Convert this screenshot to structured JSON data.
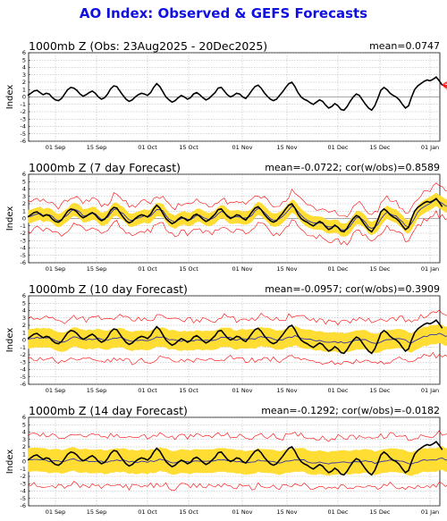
{
  "title": "AO Index: Observed & GEFS Forecasts",
  "colors": {
    "title": "#1010e0",
    "observed": "#000000",
    "ensemble": "#ff0000",
    "spread": "#ffdd33",
    "mean_fc": "#3333aa"
  },
  "chart_data": [
    {
      "type": "line",
      "title": "1000mb Z (Obs: 23Aug2025 - 20Dec2025)",
      "stats": "mean=0.0747",
      "ylabel": "Index",
      "ylim": [
        -6,
        6
      ],
      "yticks": [
        6,
        5,
        4,
        3,
        2,
        1,
        0,
        -1,
        -2,
        -3,
        -4,
        -5,
        -6
      ],
      "xticks": [
        "01 Sep",
        "15 Sep",
        "01 Oct",
        "15 Oct",
        "01 Nov",
        "15 Nov",
        "01 Dec",
        "15 Dec",
        "01 Jan"
      ],
      "series": [
        {
          "values": [
            0.2,
            0.5,
            0.8,
            0.9,
            0.6,
            0.3,
            0.5,
            0.4,
            -0.1,
            -0.4,
            -0.5,
            -0.2,
            0.4,
            1.0,
            1.3,
            1.2,
            0.9,
            0.4,
            0.1,
            0.3,
            0.6,
            0.8,
            0.5,
            0.0,
            -0.3,
            -0.1,
            0.4,
            1.1,
            1.5,
            1.4,
            0.8,
            0.2,
            -0.3,
            -0.6,
            -0.4,
            0.0,
            0.3,
            0.5,
            0.4,
            0.2,
            0.6,
            1.3,
            1.8,
            1.4,
            0.7,
            0.0,
            -0.4,
            -0.7,
            -0.5,
            -0.1,
            0.2,
            0.0,
            -0.3,
            -0.1,
            0.4,
            0.6,
            0.3,
            -0.1,
            -0.4,
            -0.2,
            0.2,
            0.6,
            1.2,
            1.3,
            0.8,
            0.3,
            0.0,
            0.2,
            0.5,
            0.4,
            0.0,
            -0.2,
            0.3,
            0.9,
            1.4,
            1.6,
            1.2,
            0.6,
            0.1,
            -0.3,
            -0.5,
            -0.3,
            0.2,
            0.7,
            1.3,
            1.8,
            2.0,
            1.4,
            0.6,
            0.0,
            -0.3,
            -0.5,
            -0.8,
            -1.0,
            -0.7,
            -0.4,
            -0.6,
            -1.1,
            -1.5,
            -1.3,
            -0.9,
            -1.2,
            -1.7,
            -1.8,
            -1.3,
            -0.6,
            0.0,
            0.4,
            0.2,
            -0.4,
            -1.0,
            -1.5,
            -1.8,
            -1.2,
            -0.2,
            0.9,
            1.3,
            1.0,
            0.5,
            0.2,
            0.0,
            -0.4,
            -1.0,
            -1.5,
            -1.2,
            0.0,
            1.0,
            1.5,
            1.8,
            2.1,
            2.3,
            2.2,
            2.4,
            2.7,
            2.2,
            1.6
          ]
        }
      ]
    },
    {
      "type": "line",
      "title": "1000mb Z (7 day Forecast)",
      "stats": "mean=-0.0722; cor(w/obs)=0.8589",
      "ylabel": "Index",
      "ylim": [
        -6,
        6
      ]
    },
    {
      "type": "line",
      "title": "1000mb Z (10 day Forecast)",
      "stats": "mean=-0.0957; cor(w/obs)=0.3909",
      "ylabel": "Index",
      "ylim": [
        -6,
        6
      ]
    },
    {
      "type": "line",
      "title": "1000mb Z (14 day Forecast)",
      "stats": "mean=-0.1292; cor(w/obs)=-0.0182",
      "ylabel": "Index",
      "ylim": [
        -6,
        6
      ]
    }
  ]
}
